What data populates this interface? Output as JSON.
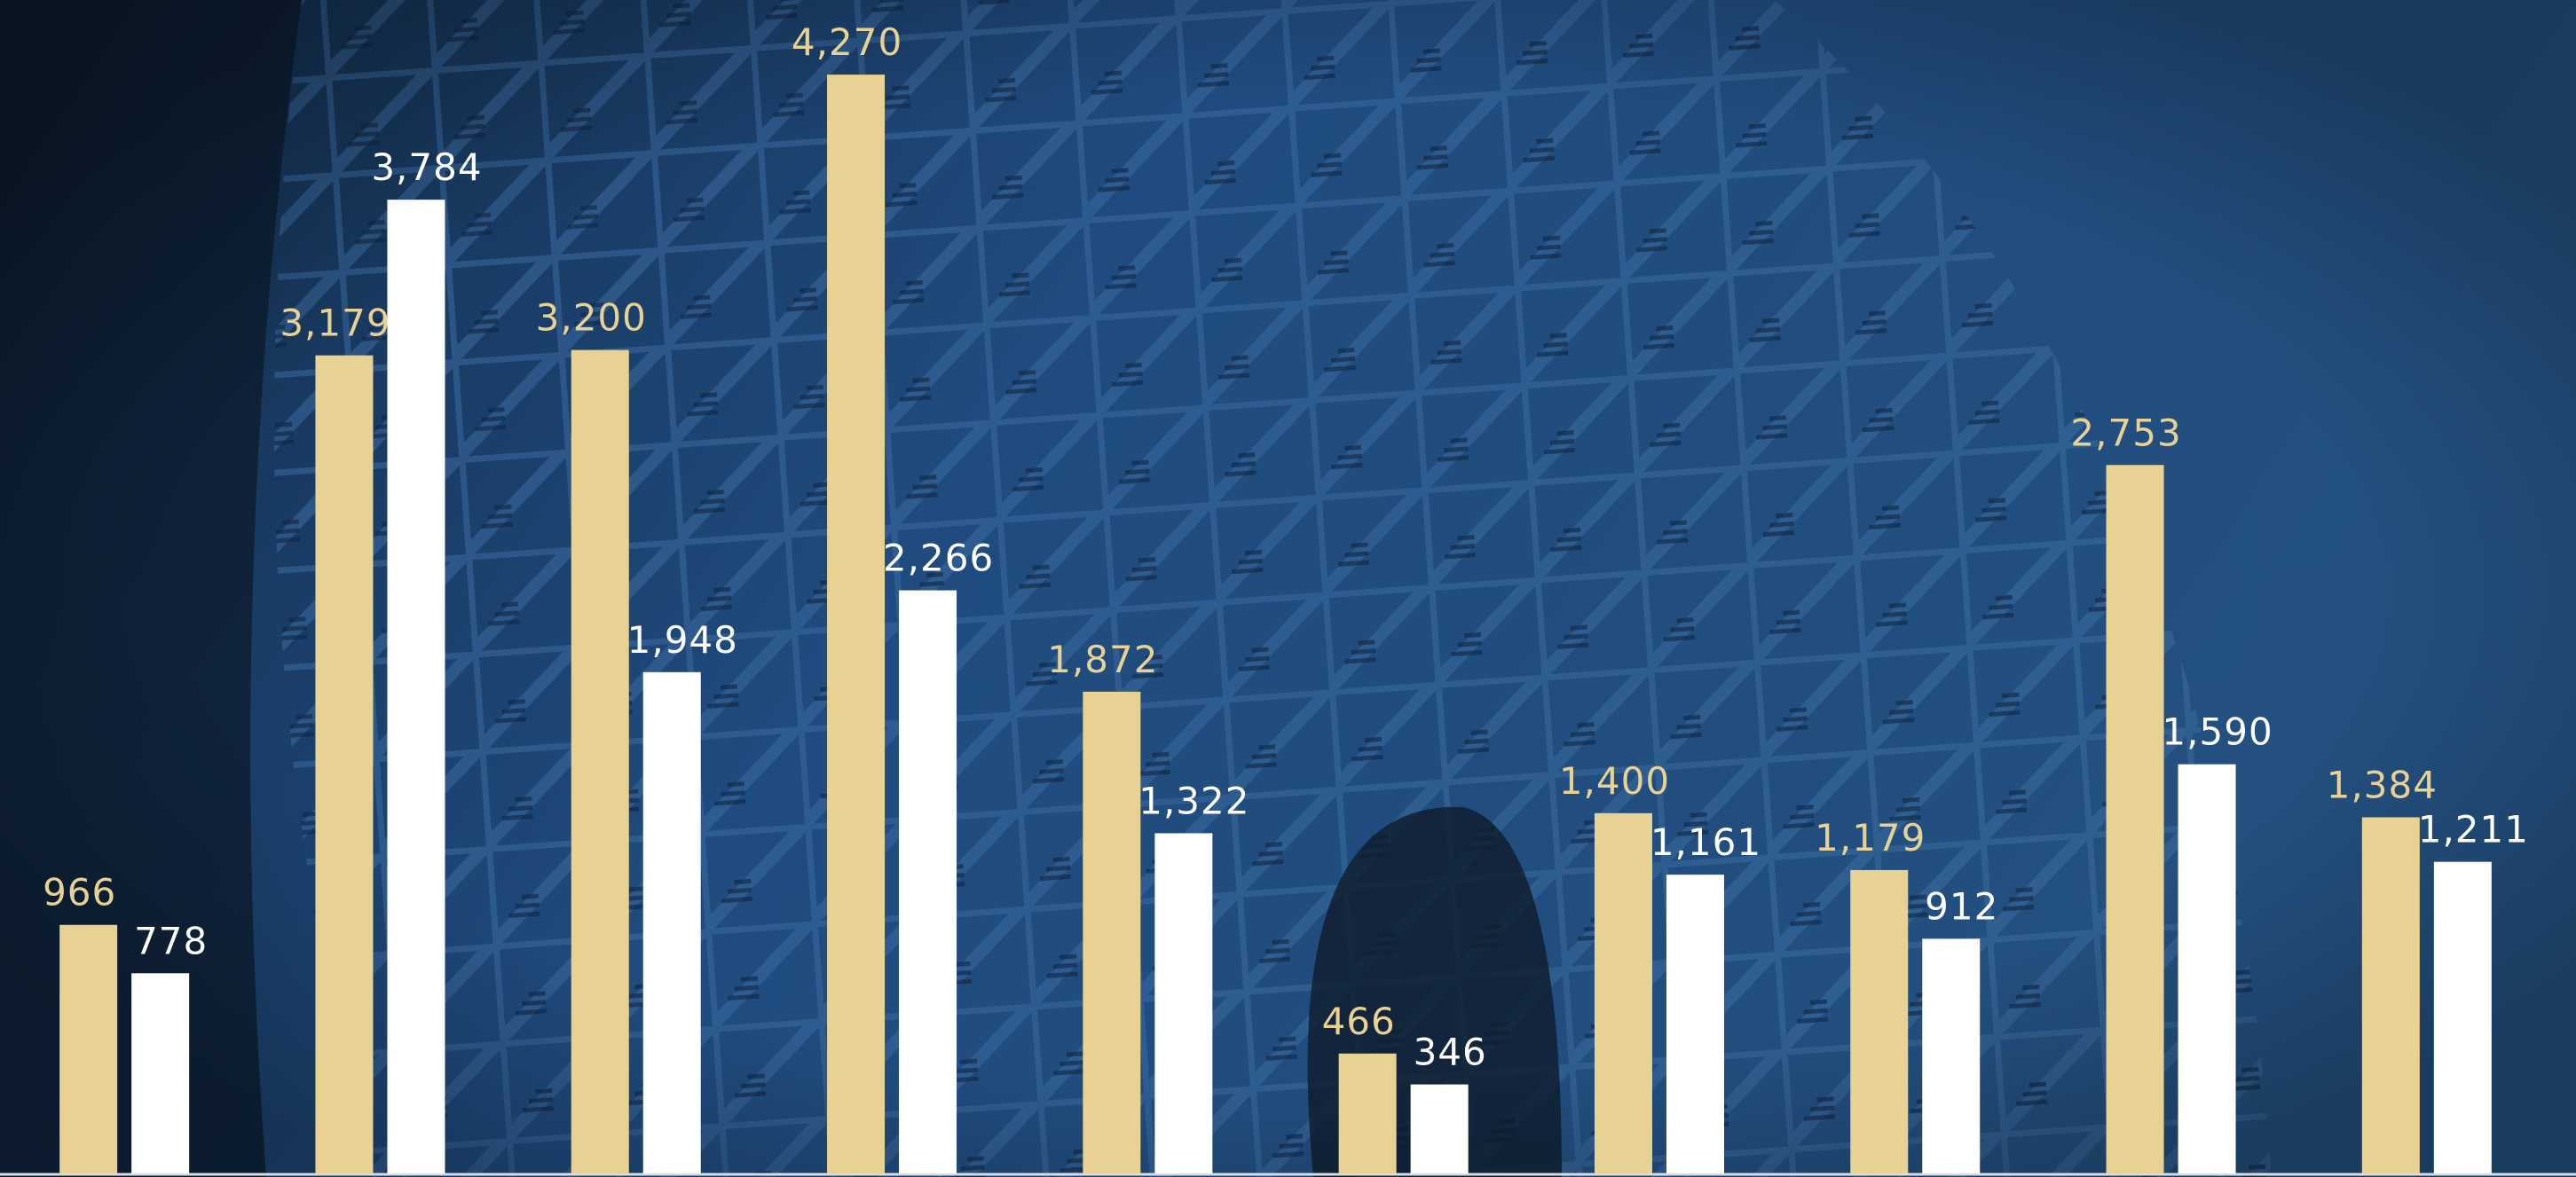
{
  "chart_data": {
    "type": "bar",
    "categories": [
      null,
      null,
      null,
      null,
      null,
      null,
      null,
      null,
      null,
      null
    ],
    "series": [
      {
        "name": null,
        "color": "#e8d293",
        "values": [
          966,
          3179,
          3200,
          4270,
          1872,
          466,
          1400,
          1179,
          2753,
          1384
        ],
        "value_labels": [
          "966",
          "3,179",
          "3,200",
          "4,270",
          "1,872",
          "466",
          "1,400",
          "1,179",
          "2,753",
          "1,384"
        ]
      },
      {
        "name": null,
        "color": "#ffffff",
        "values": [
          778,
          3784,
          1948,
          2266,
          1322,
          346,
          1161,
          912,
          1590,
          1211
        ],
        "value_labels": [
          "778",
          "3,784",
          "1,948",
          "2,266",
          "1,322",
          "346",
          "1,161",
          "912",
          "1,590",
          "1,211"
        ]
      }
    ],
    "ylim": [
      0,
      4560
    ]
  }
}
